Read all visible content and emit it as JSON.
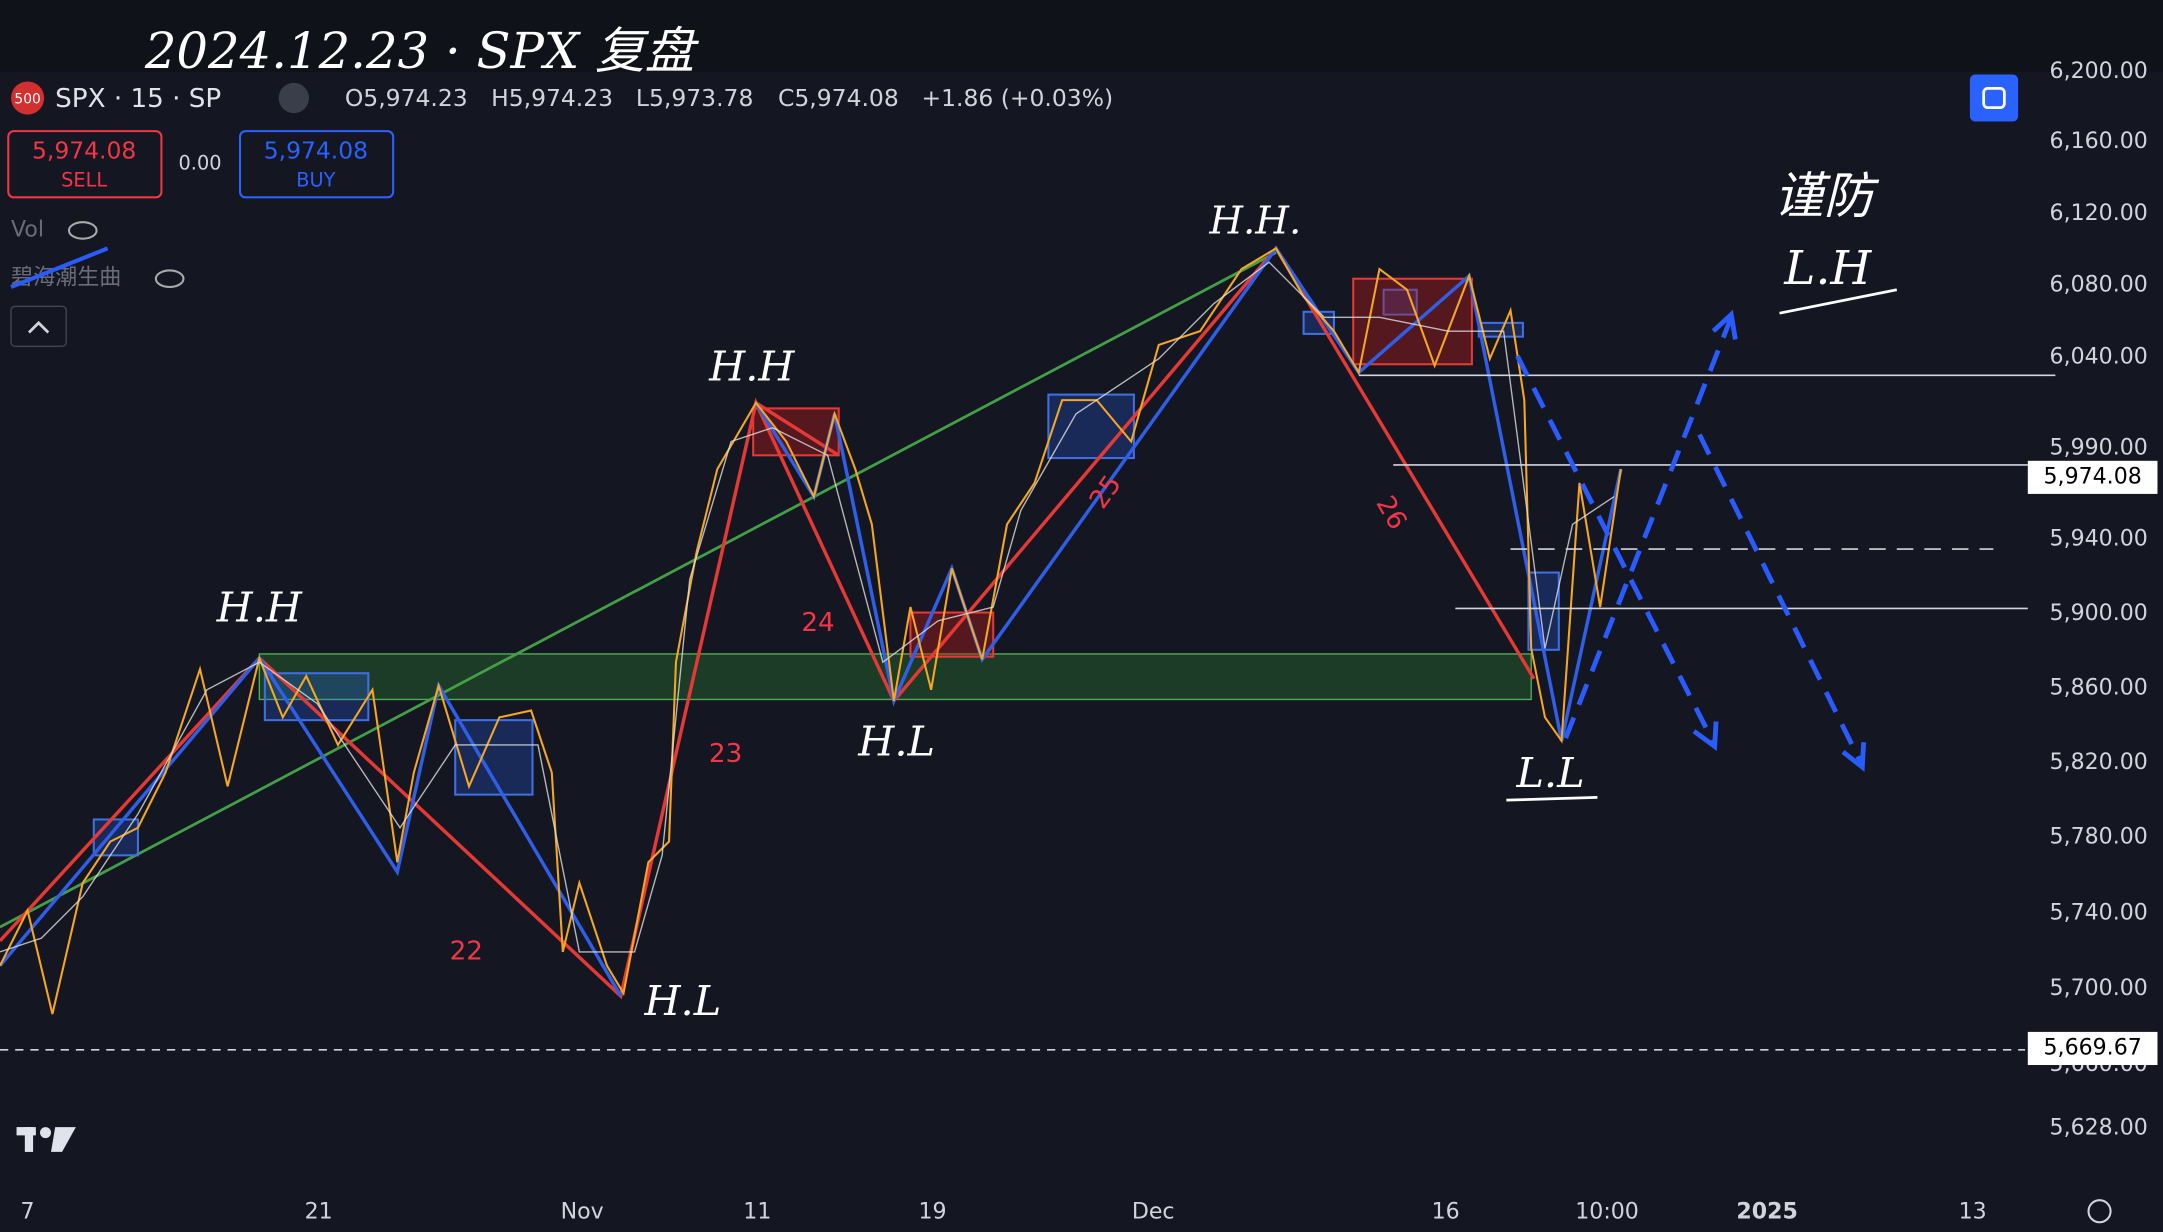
{
  "title": "2024.12.23 · SPX 复盘",
  "header": {
    "badge": "500",
    "symbol": "SPX · 15 · SP",
    "open": "O5,974.23",
    "high": "H5,974.23",
    "low": "L5,973.78",
    "close": "C5,974.08",
    "change": "+1.86 (+0.03%)"
  },
  "trade": {
    "sell_price": "5,974.08",
    "sell": "SELL",
    "spread": "0.00",
    "buy_price": "5,974.08",
    "buy": "BUY"
  },
  "indicators": [
    "Vol",
    "碧海潮生曲"
  ],
  "price_axis": {
    "labels": [
      "6,200.00",
      "6,160.00",
      "6,120.00",
      "6,080.00",
      "6,040.00",
      "5,990.00",
      "5,940.00",
      "5,900.00",
      "5,860.00",
      "5,820.00",
      "5,780.00",
      "5,740.00",
      "5,700.00",
      "5,660.00",
      "5,628.00"
    ],
    "current_price": "5,974.08",
    "marked_price": "5,669.67"
  },
  "time_axis": {
    "labels": [
      "7",
      "21",
      "Nov",
      "11",
      "19",
      "Dec",
      "16",
      "10:00",
      "2025",
      "13"
    ]
  },
  "annotations": {
    "points": [
      "H.H",
      "H.H",
      "H.H.",
      "H.L",
      "H.L",
      "L.L"
    ],
    "waves": [
      "22",
      "23",
      "24",
      "25",
      "26"
    ],
    "warning": [
      "谨防",
      "L.H"
    ]
  }
}
